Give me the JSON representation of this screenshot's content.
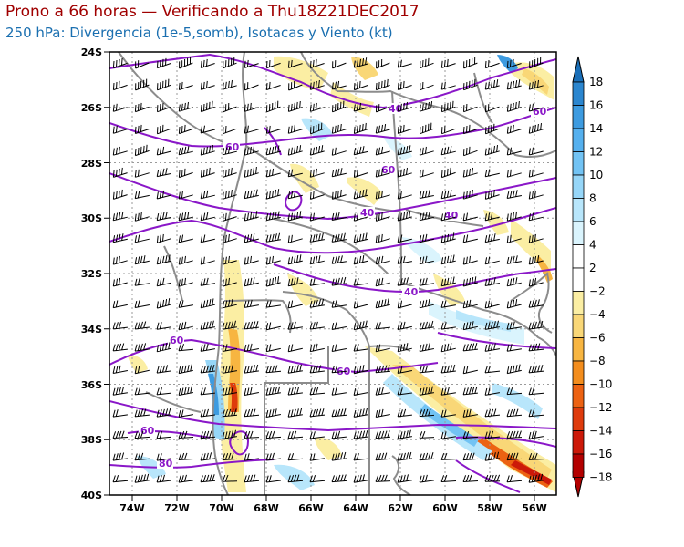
{
  "title_line1": "Prono a 66 horas — Verificando a Thu18Z21DEC2017",
  "title_line2": "250 hPa: Divergencia (1e-5,somb), Isotacas y Viento (kt)",
  "lat_labels": [
    "24S",
    "26S",
    "28S",
    "30S",
    "32S",
    "34S",
    "36S",
    "38S",
    "40S"
  ],
  "lon_labels": [
    "74W",
    "72W",
    "70W",
    "68W",
    "66W",
    "64W",
    "62W",
    "60W",
    "58W",
    "56W"
  ],
  "colorbar_labels": [
    "18",
    "16",
    "14",
    "12",
    "10",
    "8",
    "6",
    "4",
    "2",
    "−2",
    "−4",
    "−6",
    "−8",
    "−10",
    "−12",
    "−14",
    "−16",
    "−18"
  ],
  "colorbar_colors": [
    "#1a6fb8",
    "#2b86cf",
    "#3d9be0",
    "#55b0ee",
    "#72c3f4",
    "#96d6f8",
    "#b8e6fb",
    "#daf4fd",
    "#ffffff",
    "#ffffff",
    "#fbeea3",
    "#f9d777",
    "#f7b541",
    "#f38d1d",
    "#ec6212",
    "#de3b0c",
    "#cc1909",
    "#b30000"
  ],
  "isotach_labels": [
    "40",
    "60",
    "60",
    "40",
    "60",
    "40",
    "40",
    "60",
    "60",
    "60",
    "80"
  ],
  "colors": {
    "isotach": "#8a17c8",
    "border": "#8c8c8c",
    "frame": "#000000"
  }
}
